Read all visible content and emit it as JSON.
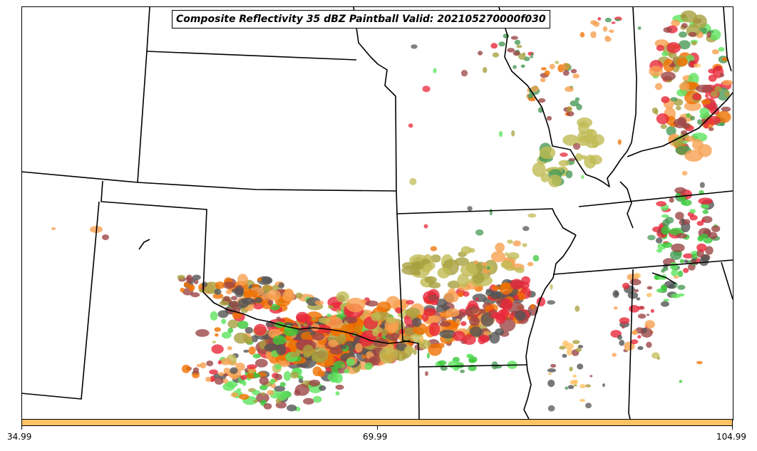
{
  "title": "Composite Reflectivity 35 dBZ Paintball Valid: 202105270000f030",
  "colorbar": {
    "fill_color": "#ffc265",
    "ticks": [
      "34.99",
      "69.99",
      "104.99"
    ]
  },
  "map": {
    "region": "south-central-united-states",
    "boundary_color": "#000000"
  },
  "legend_colors": {
    "orange": "#f07000",
    "light-orange": "#f8a050",
    "red": "#e8283a",
    "maroon": "#9c4646",
    "olive": "#a8a040",
    "khaki": "#c0bb55",
    "dark-gray": "#555555",
    "green": "#3ac83a",
    "light-green": "#5ee35e",
    "sea-green": "#4a9a56",
    "pale-orange": "#ffc265"
  }
}
